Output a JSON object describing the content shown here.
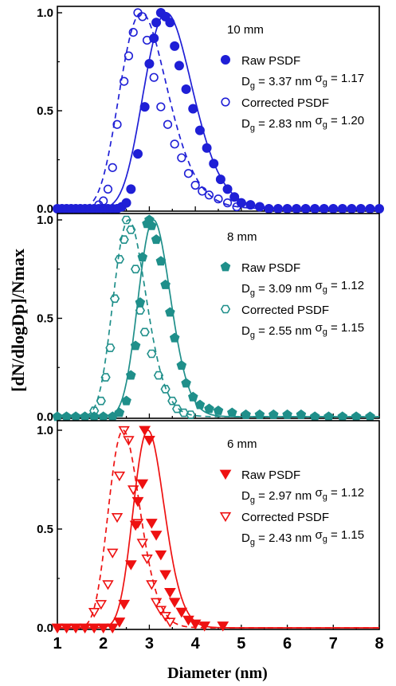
{
  "chart_data": {
    "type": "scatter",
    "xlabel": "Diameter (nm)",
    "ylabel": "[dN/dlogDp]/Nmax",
    "xlim": [
      1,
      8
    ],
    "x_ticks": [
      "1",
      "2",
      "3",
      "4",
      "5",
      "6",
      "7",
      "8"
    ],
    "y_ticks": [
      "0.0",
      "0.5",
      "1.0"
    ],
    "panels": [
      {
        "label": "10 mm",
        "color": "#1f1fd6",
        "ylim": [
          0,
          1.0
        ],
        "raw": {
          "name": "Raw PSDF",
          "marker": "filled-circle",
          "dg_label": "D",
          "dg_sub": "g",
          "dg_text": " = 3.37 nm ",
          "sg_label": "σ",
          "sg_sub": "g",
          "sg_text": " = 1.17",
          "fit": {
            "dg": 3.37,
            "sg": 1.17
          },
          "points": [
            [
              1.0,
              0
            ],
            [
              1.1,
              0
            ],
            [
              1.2,
              0
            ],
            [
              1.3,
              0
            ],
            [
              1.4,
              0
            ],
            [
              1.5,
              0
            ],
            [
              1.6,
              0
            ],
            [
              1.7,
              0
            ],
            [
              1.8,
              0
            ],
            [
              1.9,
              0
            ],
            [
              2.0,
              0
            ],
            [
              2.1,
              0
            ],
            [
              2.2,
              0
            ],
            [
              2.3,
              0
            ],
            [
              2.4,
              0.01
            ],
            [
              2.5,
              0.03
            ],
            [
              2.6,
              0.1
            ],
            [
              2.75,
              0.28
            ],
            [
              2.9,
              0.52
            ],
            [
              3.0,
              0.74
            ],
            [
              3.1,
              0.87
            ],
            [
              3.15,
              0.95
            ],
            [
              3.25,
              1.0
            ],
            [
              3.35,
              0.98
            ],
            [
              3.45,
              0.95
            ],
            [
              3.55,
              0.83
            ],
            [
              3.65,
              0.73
            ],
            [
              3.8,
              0.61
            ],
            [
              3.95,
              0.51
            ],
            [
              4.1,
              0.4
            ],
            [
              4.25,
              0.31
            ],
            [
              4.4,
              0.23
            ],
            [
              4.55,
              0.15
            ],
            [
              4.7,
              0.1
            ],
            [
              4.85,
              0.06
            ],
            [
              5.0,
              0.03
            ],
            [
              5.2,
              0.02
            ],
            [
              5.4,
              0.01
            ],
            [
              5.6,
              0
            ],
            [
              5.8,
              0
            ],
            [
              6.0,
              0
            ],
            [
              6.2,
              0
            ],
            [
              6.4,
              0
            ],
            [
              6.6,
              0
            ],
            [
              6.8,
              0
            ],
            [
              7.0,
              0
            ],
            [
              7.2,
              0
            ],
            [
              7.4,
              0
            ],
            [
              7.6,
              0
            ],
            [
              7.8,
              0
            ],
            [
              8.0,
              0
            ]
          ]
        },
        "corrected": {
          "name": "Corrected PSDF",
          "marker": "open-circle",
          "dg_label": "D",
          "dg_sub": "g",
          "dg_text": " = 2.83 nm ",
          "sg_label": "σ",
          "sg_sub": "g",
          "sg_text": " = 1.20",
          "fit": {
            "dg": 2.83,
            "sg": 1.2
          },
          "points": [
            [
              1.9,
              0.02
            ],
            [
              2.0,
              0.04
            ],
            [
              2.1,
              0.1
            ],
            [
              2.2,
              0.21
            ],
            [
              2.3,
              0.43
            ],
            [
              2.45,
              0.65
            ],
            [
              2.55,
              0.78
            ],
            [
              2.65,
              0.9
            ],
            [
              2.75,
              1.0
            ],
            [
              2.85,
              0.98
            ],
            [
              2.95,
              0.86
            ],
            [
              3.1,
              0.67
            ],
            [
              3.25,
              0.52
            ],
            [
              3.4,
              0.43
            ],
            [
              3.55,
              0.33
            ],
            [
              3.7,
              0.26
            ],
            [
              3.85,
              0.18
            ],
            [
              4.0,
              0.12
            ],
            [
              4.15,
              0.09
            ],
            [
              4.3,
              0.07
            ],
            [
              4.5,
              0.05
            ],
            [
              4.7,
              0.03
            ],
            [
              4.9,
              0.01
            ]
          ]
        }
      },
      {
        "label": "8 mm",
        "color": "#1f8f8a",
        "ylim": [
          0,
          1.0
        ],
        "raw": {
          "name": "Raw PSDF",
          "marker": "filled-pentagon",
          "dg_label": "D",
          "dg_sub": "g",
          "dg_text": " = 3.09 nm ",
          "sg_label": "σ",
          "sg_sub": "g",
          "sg_text": " = 1.12",
          "fit": {
            "dg": 3.09,
            "sg": 1.12
          },
          "points": [
            [
              1.0,
              0
            ],
            [
              1.2,
              0
            ],
            [
              1.4,
              0
            ],
            [
              1.6,
              0
            ],
            [
              1.8,
              0
            ],
            [
              2.0,
              0
            ],
            [
              2.2,
              0
            ],
            [
              2.35,
              0.02
            ],
            [
              2.5,
              0.08
            ],
            [
              2.6,
              0.21
            ],
            [
              2.7,
              0.36
            ],
            [
              2.8,
              0.58
            ],
            [
              2.85,
              0.81
            ],
            [
              2.95,
              0.98
            ],
            [
              3.0,
              1.0
            ],
            [
              3.05,
              0.97
            ],
            [
              3.15,
              0.9
            ],
            [
              3.25,
              0.79
            ],
            [
              3.35,
              0.67
            ],
            [
              3.45,
              0.53
            ],
            [
              3.55,
              0.4
            ],
            [
              3.7,
              0.26
            ],
            [
              3.8,
              0.17
            ],
            [
              3.95,
              0.1
            ],
            [
              4.1,
              0.06
            ],
            [
              4.3,
              0.04
            ],
            [
              4.5,
              0.03
            ],
            [
              4.8,
              0.02
            ],
            [
              5.1,
              0.01
            ],
            [
              5.4,
              0.01
            ],
            [
              5.7,
              0.01
            ],
            [
              6.0,
              0.01
            ],
            [
              6.3,
              0.01
            ],
            [
              6.6,
              0
            ],
            [
              6.9,
              0
            ],
            [
              7.2,
              0
            ],
            [
              7.5,
              0
            ],
            [
              7.8,
              0
            ]
          ]
        },
        "corrected": {
          "name": "Corrected PSDF",
          "marker": "open-hexagon",
          "dg_label": "D",
          "dg_sub": "g",
          "dg_text": " = 2.55 nm ",
          "sg_label": "σ",
          "sg_sub": "g",
          "sg_text": " = 1.15",
          "fit": {
            "dg": 2.55,
            "sg": 1.15
          },
          "points": [
            [
              1.8,
              0.03
            ],
            [
              1.95,
              0.08
            ],
            [
              2.05,
              0.2
            ],
            [
              2.15,
              0.35
            ],
            [
              2.25,
              0.6
            ],
            [
              2.35,
              0.8
            ],
            [
              2.45,
              0.9
            ],
            [
              2.5,
              1.0
            ],
            [
              2.6,
              0.95
            ],
            [
              2.7,
              0.75
            ],
            [
              2.8,
              0.54
            ],
            [
              2.9,
              0.43
            ],
            [
              3.05,
              0.32
            ],
            [
              3.2,
              0.21
            ],
            [
              3.35,
              0.14
            ],
            [
              3.5,
              0.08
            ],
            [
              3.6,
              0.04
            ],
            [
              3.75,
              0.02
            ],
            [
              3.9,
              0.01
            ]
          ]
        }
      },
      {
        "label": "6 mm",
        "color": "#ee1111",
        "ylim": [
          0,
          1.0
        ],
        "raw": {
          "name": "Raw PSDF",
          "marker": "filled-down-triangle",
          "dg_label": "D",
          "dg_sub": "g",
          "dg_text": " = 2.97 nm ",
          "sg_label": "σ",
          "sg_sub": "g",
          "sg_text": " = 1.12",
          "fit": {
            "dg": 2.97,
            "sg": 1.12
          },
          "points": [
            [
              1.0,
              0
            ],
            [
              1.2,
              0
            ],
            [
              1.4,
              0
            ],
            [
              1.6,
              0
            ],
            [
              1.8,
              0
            ],
            [
              2.0,
              0
            ],
            [
              2.2,
              0
            ],
            [
              2.35,
              0.03
            ],
            [
              2.45,
              0.12
            ],
            [
              2.6,
              0.32
            ],
            [
              2.7,
              0.52
            ],
            [
              2.75,
              0.64
            ],
            [
              2.85,
              0.73
            ],
            [
              2.9,
              1.0
            ],
            [
              3.0,
              0.95
            ],
            [
              3.05,
              0.53
            ],
            [
              3.15,
              0.47
            ],
            [
              3.25,
              0.37
            ],
            [
              3.35,
              0.27
            ],
            [
              3.45,
              0.18
            ],
            [
              3.55,
              0.13
            ],
            [
              3.7,
              0.08
            ],
            [
              3.85,
              0.04
            ],
            [
              4.0,
              0.02
            ],
            [
              4.2,
              0.01
            ],
            [
              4.6,
              0.01
            ]
          ]
        },
        "corrected": {
          "name": "Corrected PSDF",
          "marker": "open-down-triangle",
          "dg_label": "D",
          "dg_sub": "g",
          "dg_text": " = 2.43 nm ",
          "sg_label": "σ",
          "sg_sub": "g",
          "sg_text": " = 1.15",
          "fit": {
            "dg": 2.43,
            "sg": 1.15
          },
          "points": [
            [
              1.8,
              0.08
            ],
            [
              1.95,
              0.12
            ],
            [
              2.1,
              0.22
            ],
            [
              2.2,
              0.38
            ],
            [
              2.3,
              0.56
            ],
            [
              2.35,
              0.77
            ],
            [
              2.45,
              1.0
            ],
            [
              2.55,
              0.95
            ],
            [
              2.65,
              0.7
            ],
            [
              2.75,
              0.53
            ],
            [
              2.85,
              0.43
            ],
            [
              2.95,
              0.35
            ],
            [
              3.05,
              0.22
            ],
            [
              3.15,
              0.13
            ],
            [
              3.25,
              0.09
            ],
            [
              3.35,
              0.06
            ],
            [
              3.45,
              0.03
            ]
          ]
        }
      }
    ]
  }
}
